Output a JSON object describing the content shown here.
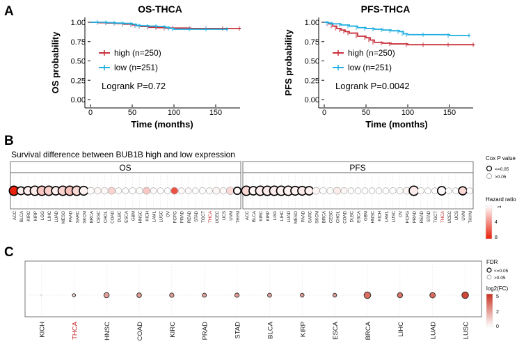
{
  "panel_labels": {
    "a": "A",
    "b": "B",
    "c": "C"
  },
  "chart_data": [
    {
      "type": "line",
      "panel": "A",
      "title": "OS-THCA",
      "xlabel": "Time (months)",
      "ylabel": "OS probability",
      "xlim": [
        0,
        185
      ],
      "ylim": [
        0,
        1.0
      ],
      "xticks": [
        "0",
        "50",
        "100",
        "150"
      ],
      "yticks": [
        "0.00",
        "0.25",
        "0.50",
        "0.75",
        "1.00"
      ],
      "annotation": "Logrank P=0.72",
      "series": [
        {
          "name": "high (n=250)",
          "color": "#c8323c",
          "x": [
            0,
            10,
            20,
            30,
            40,
            50,
            55,
            60,
            70,
            80,
            90,
            100,
            120,
            140,
            160,
            180
          ],
          "y": [
            1.0,
            0.995,
            0.99,
            0.985,
            0.975,
            0.965,
            0.955,
            0.945,
            0.935,
            0.93,
            0.925,
            0.925,
            0.92,
            0.92,
            0.92,
            0.92
          ]
        },
        {
          "name": "low (n=251)",
          "color": "#1eaee0",
          "x": [
            0,
            10,
            20,
            30,
            40,
            50,
            55,
            60,
            70,
            80,
            90,
            95,
            100,
            120,
            140,
            165
          ],
          "y": [
            1.0,
            1.0,
            0.995,
            0.99,
            0.985,
            0.975,
            0.96,
            0.955,
            0.95,
            0.945,
            0.935,
            0.92,
            0.91,
            0.91,
            0.91,
            0.91
          ]
        }
      ]
    },
    {
      "type": "line",
      "panel": "A",
      "title": "PFS-THCA",
      "xlabel": "Time (months)",
      "ylabel": "PFS probability",
      "xlim": [
        0,
        185
      ],
      "ylim": [
        0,
        1.0
      ],
      "xticks": [
        "0",
        "50",
        "100",
        "150"
      ],
      "yticks": [
        "0.00",
        "0.25",
        "0.50",
        "0.75",
        "1.00"
      ],
      "annotation": "Logrank P=0.0042",
      "series": [
        {
          "name": "high (n=250)",
          "color": "#c8323c",
          "x": [
            0,
            5,
            10,
            15,
            20,
            25,
            30,
            40,
            50,
            55,
            60,
            70,
            80,
            100,
            120,
            150,
            180
          ],
          "y": [
            1.0,
            0.98,
            0.95,
            0.92,
            0.9,
            0.88,
            0.86,
            0.82,
            0.8,
            0.77,
            0.74,
            0.73,
            0.72,
            0.71,
            0.71,
            0.71,
            0.71
          ]
        },
        {
          "name": "low (n=251)",
          "color": "#1eaee0",
          "x": [
            0,
            5,
            10,
            20,
            30,
            40,
            50,
            60,
            70,
            80,
            90,
            95,
            100,
            120,
            150,
            175
          ],
          "y": [
            1.0,
            0.99,
            0.98,
            0.965,
            0.95,
            0.93,
            0.92,
            0.91,
            0.9,
            0.89,
            0.88,
            0.85,
            0.84,
            0.84,
            0.83,
            0.83
          ]
        }
      ]
    },
    {
      "type": "scatter",
      "panel": "B",
      "title": "Survival  difference between BUB1B high and low expression",
      "facets": [
        "OS",
        "PFS"
      ],
      "legend": {
        "size_title": "Cox P value",
        "size_levels": [
          "<=0.05",
          ">0.05"
        ],
        "color_title": "Hazard ratio",
        "color_ticks": [
          "1",
          "4",
          "8"
        ],
        "color_range": [
          "#ffffff",
          "#e8220f"
        ]
      },
      "highlight": "THCA",
      "os": {
        "categories": [
          "ACC",
          "BLCA",
          "KIRC",
          "KIRP",
          "LGG",
          "LIHC",
          "LUAD",
          "MESO",
          "PAAD",
          "SARC",
          "SKCM",
          "BRCA",
          "CESC",
          "CHOL",
          "COAD",
          "DLBC",
          "ESCA",
          "GBM",
          "HNSC",
          "KICH",
          "LAML",
          "LUSC",
          "OV",
          "PCPG",
          "PRAD",
          "READ",
          "STAD",
          "TGCT",
          "THCA",
          "UCEC",
          "UCS",
          "UVM",
          "THYM"
        ],
        "hazard_ratio": [
          8,
          1.6,
          1.5,
          1.6,
          2.8,
          2.5,
          1.4,
          2.4,
          3.0,
          2.2,
          1.4,
          1.1,
          1.3,
          1.2,
          2.4,
          1.1,
          1.1,
          1.05,
          1.1,
          2.8,
          1.2,
          1.05,
          1.05,
          6.5,
          1.1,
          1.2,
          1.05,
          1.1,
          1.1,
          1.3,
          1.2,
          2.2,
          1.2
        ],
        "significant": [
          1,
          1,
          1,
          1,
          1,
          1,
          1,
          1,
          1,
          1,
          1,
          0,
          0,
          0,
          0,
          0,
          0,
          0,
          0,
          0,
          0,
          0,
          0,
          0,
          0,
          0,
          0,
          0,
          0,
          0,
          0,
          0,
          1
        ],
        "size": [
          1.0,
          0.75,
          0.85,
          1.0,
          1.0,
          1.0,
          0.85,
          1.0,
          1.0,
          1.0,
          0.9,
          0.6,
          0.55,
          0.55,
          0.6,
          0.45,
          0.45,
          0.5,
          0.5,
          0.6,
          0.45,
          0.45,
          0.45,
          0.6,
          0.45,
          0.45,
          0.45,
          0.5,
          0.45,
          0.6,
          0.55,
          0.7,
          0.65
        ]
      },
      "pfs": {
        "categories": [
          "ACC",
          "BLCA",
          "KIRC",
          "KIRP",
          "LGG",
          "LIHC",
          "LUAD",
          "MESO",
          "PAAD",
          "SARC",
          "SKCM",
          "BRCA",
          "CESC",
          "CHOL",
          "COAD",
          "DLBC",
          "ESCA",
          "GBM",
          "HNSC",
          "KICH",
          "LAML",
          "LUSC",
          "OV",
          "PCPG",
          "PRAD",
          "READ",
          "STAD",
          "TGCT",
          "THCA",
          "UCEC",
          "UCS",
          "UVM",
          "THYM"
        ],
        "hazard_ratio": [
          2.2,
          1.3,
          1.6,
          1.6,
          1.6,
          1.5,
          1.4,
          1.4,
          1.6,
          1.5,
          1.3,
          1.1,
          1.1,
          1.6,
          1.3,
          1.1,
          1.1,
          1.1,
          1.05,
          1.1,
          1.05,
          1.1,
          1.1,
          1.3,
          1.6,
          1.1,
          1.05,
          1.05,
          1.2,
          1.05,
          1.05,
          2.2,
          1.05
        ],
        "significant": [
          1,
          1,
          1,
          1,
          1,
          1,
          1,
          1,
          1,
          1,
          0,
          0,
          0,
          0,
          0,
          0,
          0,
          0,
          0,
          0,
          0,
          0,
          0,
          0,
          1,
          0,
          0,
          0,
          1,
          0,
          0,
          1,
          0
        ],
        "size": [
          1.0,
          0.85,
          1.0,
          1.0,
          1.0,
          1.0,
          1.0,
          0.9,
          0.9,
          0.85,
          0.6,
          0.55,
          0.5,
          0.6,
          0.5,
          0.45,
          0.45,
          0.45,
          0.45,
          0.45,
          0.45,
          0.5,
          0.5,
          0.6,
          1.0,
          0.5,
          0.45,
          0.45,
          0.85,
          0.45,
          0.45,
          0.8,
          0.45
        ]
      }
    },
    {
      "type": "scatter",
      "panel": "C",
      "legend": {
        "size_title": "FDR",
        "size_levels": [
          "<=0.05",
          ">0.05"
        ],
        "color_title": "log2(FC)",
        "color_ticks": [
          "0",
          "2",
          "5"
        ],
        "color_range": [
          "#ffffff",
          "#c9311f"
        ]
      },
      "highlight": "THCA",
      "categories": [
        "KICH",
        "THCA",
        "HNSC",
        "COAD",
        "KIRC",
        "PRAD",
        "STAD",
        "BLCA",
        "KIRP",
        "ESCA",
        "BRCA",
        "LIHC",
        "LUAD",
        "LUSC"
      ],
      "log2fc": [
        0.2,
        1.0,
        2.3,
        2.4,
        2.3,
        2.2,
        2.4,
        2.3,
        2.3,
        2.2,
        3.5,
        3.4,
        3.6,
        4.5
      ],
      "significant": [
        0,
        1,
        1,
        1,
        1,
        1,
        1,
        1,
        1,
        1,
        1,
        1,
        1,
        1
      ],
      "size": [
        0.1,
        0.35,
        0.7,
        0.6,
        0.55,
        0.5,
        0.55,
        0.5,
        0.45,
        0.45,
        0.95,
        0.7,
        0.75,
        0.95
      ]
    }
  ]
}
